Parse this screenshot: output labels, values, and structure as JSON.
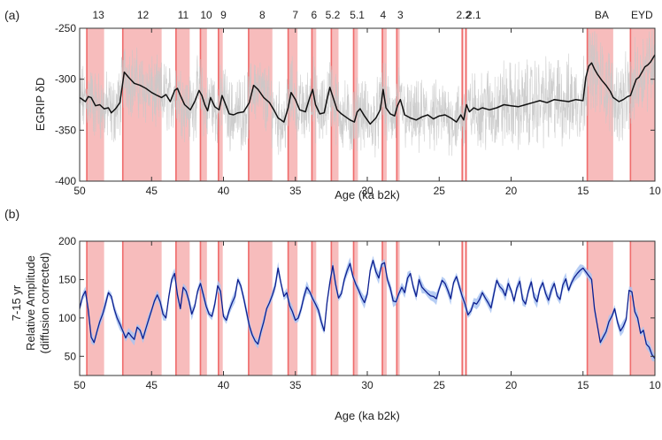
{
  "chart_data": [
    {
      "type": "line",
      "panel_label": "(a)",
      "xlabel": "Age (ka b2k)",
      "ylabel": "EGRIP δD",
      "xlim": [
        50,
        10
      ],
      "ylim": [
        -400,
        -250
      ],
      "xticks": [
        50,
        45,
        40,
        35,
        30,
        25,
        20,
        15,
        10
      ],
      "yticks": [
        -400,
        -350,
        -300,
        -250
      ],
      "grid": false,
      "colors": {
        "raw": "#c8c8c8",
        "smooth": "#111111",
        "shade": "#f7bcbc",
        "edge": "#ef6c6c"
      },
      "event_labels": [
        {
          "label": "13",
          "x": 48.7
        },
        {
          "label": "12",
          "x": 45.6
        },
        {
          "label": "11",
          "x": 42.8
        },
        {
          "label": "10",
          "x": 41.2
        },
        {
          "label": "9",
          "x": 40.0
        },
        {
          "label": "8",
          "x": 37.3
        },
        {
          "label": "7",
          "x": 35.0
        },
        {
          "label": "6",
          "x": 33.7
        },
        {
          "label": "5.2",
          "x": 32.4
        },
        {
          "label": "5.1",
          "x": 30.7
        },
        {
          "label": "4",
          "x": 28.9
        },
        {
          "label": "3",
          "x": 27.7
        },
        {
          "label": "2.2",
          "x": 23.3
        },
        {
          "label": "2.1",
          "x": 22.6
        },
        {
          "label": "BA",
          "x": 13.7
        },
        {
          "label": "EYD",
          "x": 10.9
        }
      ],
      "series": [
        {
          "role": "smoothed",
          "x": [
            50.0,
            49.6,
            49.4,
            49.2,
            48.9,
            48.6,
            48.3,
            48.0,
            47.8,
            47.5,
            47.2,
            46.9,
            46.6,
            46.2,
            45.8,
            45.4,
            45.0,
            44.6,
            44.3,
            44.0,
            43.7,
            43.4,
            43.2,
            43.0,
            42.7,
            42.3,
            42.0,
            41.7,
            41.5,
            41.3,
            41.1,
            40.9,
            40.6,
            40.3,
            40.1,
            39.9,
            39.6,
            39.3,
            39.0,
            38.6,
            38.2,
            37.9,
            37.6,
            37.2,
            36.8,
            36.5,
            36.2,
            35.8,
            35.5,
            35.3,
            35.0,
            34.7,
            34.3,
            34.0,
            33.8,
            33.6,
            33.3,
            33.0,
            32.8,
            32.6,
            32.4,
            32.1,
            31.8,
            31.5,
            31.2,
            30.9,
            30.7,
            30.5,
            30.2,
            29.8,
            29.4,
            29.1,
            28.9,
            28.7,
            28.4,
            28.1,
            27.9,
            27.7,
            27.4,
            27.0,
            26.6,
            26.2,
            25.8,
            25.4,
            25.0,
            24.6,
            24.2,
            23.8,
            23.5,
            23.3,
            23.1,
            22.9,
            22.6,
            22.3,
            22.0,
            21.5,
            21.0,
            20.5,
            20.0,
            19.5,
            19.0,
            18.5,
            18.0,
            17.5,
            17.0,
            16.5,
            16.0,
            15.5,
            15.0,
            14.8,
            14.6,
            14.4,
            14.2,
            14.0,
            13.7,
            13.4,
            13.1,
            12.9,
            12.7,
            12.5,
            12.2,
            11.9,
            11.7,
            11.5,
            11.3,
            11.1,
            10.9,
            10.7,
            10.5,
            10.3,
            10.0
          ],
          "values": [
            -318,
            -322,
            -317,
            -318,
            -326,
            -325,
            -329,
            -328,
            -333,
            -329,
            -323,
            -293,
            -298,
            -304,
            -306,
            -309,
            -313,
            -316,
            -318,
            -315,
            -322,
            -311,
            -309,
            -316,
            -325,
            -330,
            -322,
            -311,
            -316,
            -325,
            -331,
            -318,
            -327,
            -330,
            -316,
            -323,
            -334,
            -335,
            -333,
            -332,
            -323,
            -306,
            -310,
            -318,
            -323,
            -330,
            -338,
            -342,
            -328,
            -313,
            -320,
            -330,
            -332,
            -318,
            -310,
            -325,
            -334,
            -333,
            -320,
            -308,
            -317,
            -330,
            -334,
            -337,
            -340,
            -342,
            -332,
            -329,
            -336,
            -344,
            -338,
            -330,
            -310,
            -328,
            -334,
            -336,
            -326,
            -320,
            -335,
            -338,
            -340,
            -337,
            -335,
            -339,
            -336,
            -335,
            -338,
            -342,
            -335,
            -340,
            -325,
            -332,
            -328,
            -330,
            -328,
            -330,
            -328,
            -325,
            -326,
            -327,
            -325,
            -323,
            -321,
            -323,
            -320,
            -321,
            -322,
            -320,
            -321,
            -298,
            -287,
            -284,
            -290,
            -295,
            -301,
            -306,
            -312,
            -318,
            -320,
            -322,
            -320,
            -317,
            -316,
            -308,
            -300,
            -298,
            -293,
            -288,
            -286,
            -283,
            -276
          ]
        }
      ]
    },
    {
      "type": "line",
      "panel_label": "(b)",
      "xlabel": "Age (ka b2k)",
      "ylabel_lines": [
        "7-15 yr",
        "Relative Amplitude",
        "(diffusion corrected)"
      ],
      "xlim": [
        50,
        10
      ],
      "ylim": [
        25,
        200
      ],
      "xticks": [
        50,
        45,
        40,
        35,
        30,
        25,
        20,
        15,
        10
      ],
      "yticks": [
        50,
        100,
        150,
        200
      ],
      "grid": false,
      "colors": {
        "line": "#0d1f8f",
        "band": "#a9c4f2",
        "shade": "#f7bcbc",
        "edge": "#ef6c6c"
      },
      "series": [
        {
          "role": "amplitude",
          "x": [
            50.0,
            49.8,
            49.6,
            49.4,
            49.2,
            49.0,
            48.8,
            48.6,
            48.4,
            48.2,
            48.0,
            47.8,
            47.6,
            47.4,
            47.2,
            47.0,
            46.8,
            46.6,
            46.4,
            46.2,
            46.0,
            45.8,
            45.6,
            45.4,
            45.2,
            45.0,
            44.8,
            44.6,
            44.4,
            44.2,
            44.0,
            43.8,
            43.6,
            43.4,
            43.2,
            43.0,
            42.8,
            42.6,
            42.4,
            42.2,
            42.0,
            41.8,
            41.6,
            41.4,
            41.2,
            41.0,
            40.8,
            40.6,
            40.4,
            40.2,
            40.0,
            39.8,
            39.6,
            39.4,
            39.2,
            39.0,
            38.8,
            38.6,
            38.4,
            38.2,
            38.0,
            37.8,
            37.6,
            37.4,
            37.2,
            37.0,
            36.8,
            36.6,
            36.4,
            36.2,
            36.0,
            35.8,
            35.6,
            35.4,
            35.2,
            35.0,
            34.8,
            34.6,
            34.4,
            34.2,
            34.0,
            33.8,
            33.6,
            33.4,
            33.2,
            33.0,
            32.8,
            32.6,
            32.4,
            32.2,
            32.0,
            31.8,
            31.6,
            31.4,
            31.2,
            31.0,
            30.8,
            30.6,
            30.4,
            30.2,
            30.0,
            29.8,
            29.6,
            29.4,
            29.2,
            29.0,
            28.8,
            28.6,
            28.4,
            28.2,
            28.0,
            27.8,
            27.6,
            27.4,
            27.2,
            27.0,
            26.8,
            26.6,
            26.4,
            26.2,
            26.0,
            25.8,
            25.6,
            25.4,
            25.2,
            25.0,
            24.8,
            24.6,
            24.4,
            24.2,
            24.0,
            23.8,
            23.6,
            23.4,
            23.2,
            23.0,
            22.8,
            22.6,
            22.4,
            22.2,
            22.0,
            21.8,
            21.6,
            21.4,
            21.2,
            21.0,
            20.8,
            20.6,
            20.4,
            20.2,
            20.0,
            19.8,
            19.6,
            19.4,
            19.2,
            19.0,
            18.8,
            18.6,
            18.4,
            18.2,
            18.0,
            17.8,
            17.6,
            17.4,
            17.2,
            17.0,
            16.8,
            16.6,
            16.4,
            16.2,
            16.0,
            15.8,
            15.6,
            15.4,
            15.2,
            15.0,
            14.8,
            14.6,
            14.4,
            14.2,
            14.0,
            13.8,
            13.6,
            13.4,
            13.2,
            13.0,
            12.8,
            12.6,
            12.4,
            12.2,
            12.0,
            11.8,
            11.6,
            11.4,
            11.2,
            11.0,
            10.8,
            10.6,
            10.4,
            10.2,
            10.0
          ],
          "values": [
            112,
            128,
            135,
            110,
            75,
            68,
            82,
            95,
            105,
            118,
            133,
            128,
            112,
            100,
            92,
            83,
            74,
            81,
            76,
            72,
            88,
            84,
            73,
            86,
            98,
            110,
            122,
            130,
            121,
            105,
            100,
            128,
            150,
            158,
            130,
            112,
            140,
            135,
            122,
            105,
            115,
            135,
            145,
            130,
            115,
            105,
            102,
            118,
            142,
            135,
            102,
            97,
            110,
            120,
            128,
            150,
            142,
            126,
            108,
            90,
            78,
            70,
            66,
            82,
            95,
            112,
            120,
            130,
            142,
            165,
            145,
            128,
            133,
            116,
            108,
            97,
            100,
            112,
            128,
            140,
            134,
            125,
            118,
            110,
            95,
            83,
            120,
            146,
            168,
            144,
            126,
            132,
            150,
            162,
            171,
            154,
            144,
            136,
            127,
            120,
            131,
            162,
            175,
            160,
            152,
            170,
            172,
            150,
            139,
            122,
            121,
            132,
            140,
            133,
            152,
            158,
            140,
            128,
            150,
            140,
            136,
            132,
            129,
            128,
            125,
            138,
            149,
            145,
            136,
            125,
            146,
            154,
            141,
            128,
            118,
            104,
            109,
            120,
            118,
            124,
            133,
            126,
            120,
            113,
            131,
            149,
            141,
            137,
            129,
            145,
            136,
            122,
            139,
            148,
            124,
            118,
            135,
            147,
            127,
            121,
            138,
            146,
            132,
            123,
            136,
            145,
            129,
            124,
            143,
            151,
            136,
            146,
            153,
            158,
            162,
            165,
            160,
            155,
            150,
            112,
            90,
            68,
            75,
            82,
            95,
            102,
            112,
            94,
            83,
            89,
            98,
            136,
            134,
            108,
            100,
            80,
            84,
            66,
            62,
            52,
            47
          ]
        }
      ]
    }
  ],
  "events": {
    "shaded": [
      [
        49.55,
        48.3
      ],
      [
        47.05,
        44.3
      ],
      [
        43.35,
        42.35
      ],
      [
        41.65,
        41.15
      ],
      [
        40.4,
        40.05
      ],
      [
        38.3,
        36.6
      ],
      [
        35.55,
        34.85
      ],
      [
        33.9,
        33.55
      ],
      [
        32.55,
        32.0
      ],
      [
        31.0,
        30.65
      ],
      [
        29.0,
        28.65
      ],
      [
        28.0,
        27.75
      ],
      [
        23.45,
        23.3
      ],
      [
        23.2,
        23.05
      ],
      [
        14.75,
        12.9
      ],
      [
        11.75,
        10.0
      ]
    ],
    "onset_lines": [
      49.5,
      47.0,
      43.3,
      41.6,
      40.35,
      38.25,
      35.5,
      33.85,
      32.5,
      30.95,
      28.95,
      27.95,
      23.4,
      23.15,
      14.7,
      11.7
    ]
  }
}
